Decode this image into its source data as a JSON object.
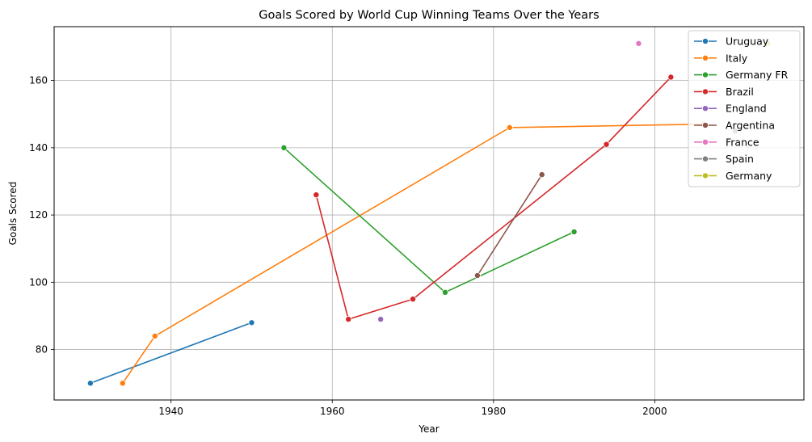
{
  "chart_data": {
    "type": "line",
    "title": "Goals Scored by World Cup Winning Teams Over the Years",
    "xlabel": "Year",
    "ylabel": "Goals Scored",
    "xlim": [
      1925.5,
      2018.5
    ],
    "ylim": [
      65.0,
      176.0
    ],
    "xticks": [
      1940,
      1960,
      1980,
      2000
    ],
    "yticks": [
      80,
      100,
      120,
      140,
      160
    ],
    "grid": true,
    "legend_position": "top-right",
    "series": [
      {
        "name": "Uruguay",
        "color": "#1f77b4",
        "points": [
          [
            1930,
            70
          ],
          [
            1950,
            88
          ]
        ]
      },
      {
        "name": "Italy",
        "color": "#ff7f0e",
        "points": [
          [
            1934,
            70
          ],
          [
            1938,
            84
          ],
          [
            1982,
            146
          ],
          [
            2006,
            147
          ]
        ]
      },
      {
        "name": "Germany FR",
        "color": "#2ca02c",
        "points": [
          [
            1954,
            140
          ],
          [
            1974,
            97
          ],
          [
            1990,
            115
          ]
        ]
      },
      {
        "name": "Brazil",
        "color": "#d62728",
        "points": [
          [
            1958,
            126
          ],
          [
            1962,
            89
          ],
          [
            1970,
            95
          ],
          [
            1994,
            141
          ],
          [
            2002,
            161
          ]
        ]
      },
      {
        "name": "England",
        "color": "#9467bd",
        "points": [
          [
            1966,
            89
          ]
        ]
      },
      {
        "name": "Argentina",
        "color": "#8c564b",
        "points": [
          [
            1978,
            102
          ],
          [
            1986,
            132
          ]
        ]
      },
      {
        "name": "France",
        "color": "#e377c2",
        "points": [
          [
            1998,
            171
          ]
        ]
      },
      {
        "name": "Spain",
        "color": "#7f7f7f",
        "points": [
          [
            2010,
            145
          ]
        ]
      },
      {
        "name": "Germany",
        "color": "#bcbd22",
        "points": [
          [
            2014,
            171
          ]
        ]
      }
    ]
  }
}
